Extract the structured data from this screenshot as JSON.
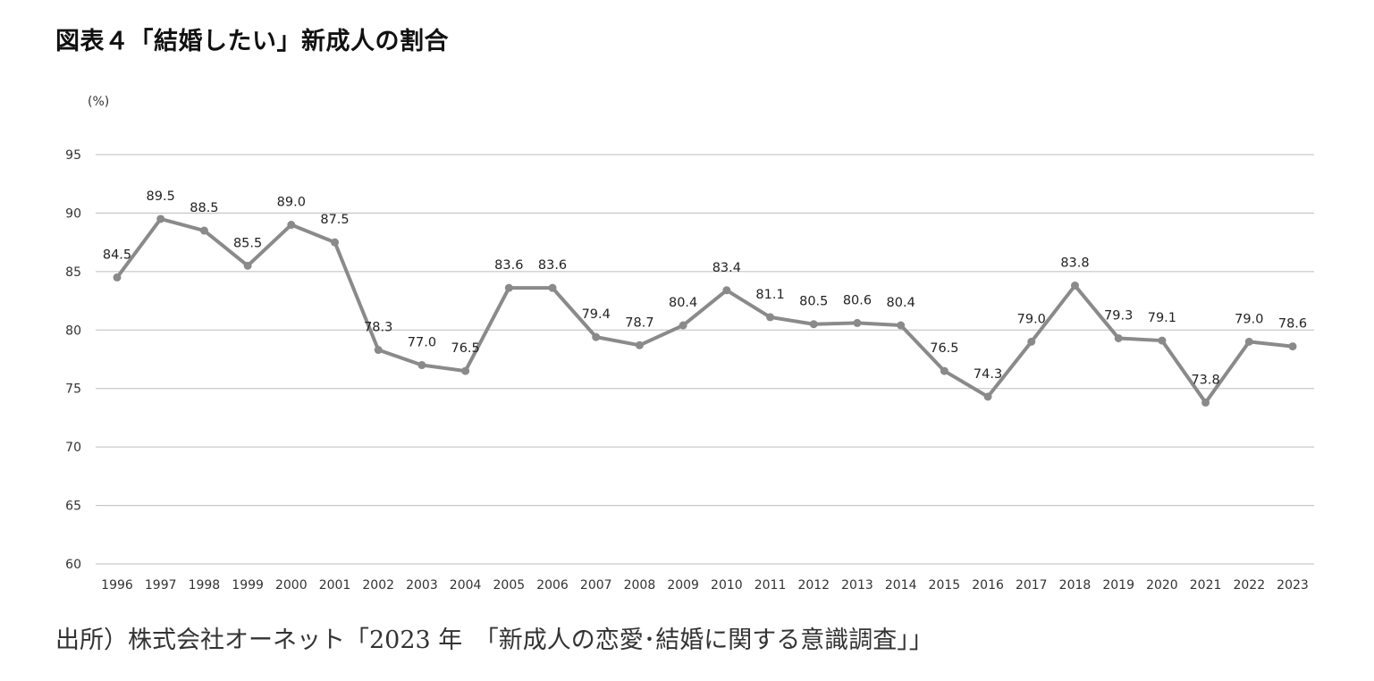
{
  "title": "図表４「結婚したい」新成人の割合",
  "source": "出所）株式会社オーネット「2023 年　「新成人の恋愛･結婚に関する意識調査」」",
  "chart_data": {
    "type": "line",
    "title": "図表４「結婚したい」新成人の割合",
    "ylabel": "(%)",
    "xlabel": "",
    "ylim": [
      60,
      95
    ],
    "yticks": [
      60,
      65,
      70,
      75,
      80,
      85,
      90,
      95
    ],
    "grid": true,
    "legend": "none",
    "line_color": "#8a8a8a",
    "categories": [
      "1996",
      "1997",
      "1998",
      "1999",
      "2000",
      "2001",
      "2002",
      "2003",
      "2004",
      "2005",
      "2006",
      "2007",
      "2008",
      "2009",
      "2010",
      "2011",
      "2012",
      "2013",
      "2014",
      "2015",
      "2016",
      "2017",
      "2018",
      "2019",
      "2020",
      "2021",
      "2022",
      "2023"
    ],
    "values": [
      84.5,
      89.5,
      88.5,
      85.5,
      89.0,
      87.5,
      78.3,
      77.0,
      76.5,
      83.6,
      83.6,
      79.4,
      78.7,
      80.4,
      83.4,
      81.1,
      80.5,
      80.6,
      80.4,
      76.5,
      74.3,
      79.0,
      83.8,
      79.3,
      79.1,
      73.8,
      79.0,
      78.6
    ],
    "data_labels": [
      "84.5",
      "89.5",
      "88.5",
      "85.5",
      "89.0",
      "87.5",
      "78.3",
      "77.0",
      "76.5",
      "83.6",
      "83.6",
      "79.4",
      "78.7",
      "80.4",
      "83.4",
      "81.1",
      "80.5",
      "80.6",
      "80.4",
      "76.5",
      "74.3",
      "79.0",
      "83.8",
      "79.3",
      "79.1",
      "73.8",
      "79.0",
      "78.6"
    ]
  }
}
